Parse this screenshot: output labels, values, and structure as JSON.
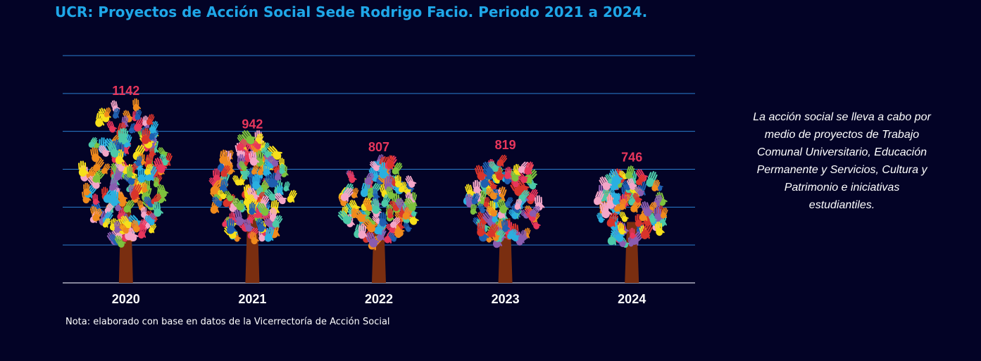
{
  "title": "UCR: Proyectos de Acción Social Sede Rodrigo Facio. Periodo 2021 a 2024.",
  "note": "Nota: elaborado con base en datos de la Vicerrectoría de Acción Social",
  "side_text": "La acción social se lleva a cabo por medio de proyectos de Trabajo Comunal Universitario, Educación Permanente y Servicios, Cultura y Patrimonio e iniciativas estudiantiles.",
  "colors": {
    "background": "#030326",
    "title": "#1fa7e8",
    "gridline": "#2a7fd0",
    "axis": "#b0b0c0",
    "value_label": "#e8365c",
    "trunk": "#7a2e10",
    "hands": [
      "#f7e01a",
      "#f08a1c",
      "#e8365c",
      "#2ab0e0",
      "#7dc23d",
      "#8a5cb0",
      "#f4a6c8",
      "#1f5fb0",
      "#d9342b",
      "#4cc9a8"
    ]
  },
  "chart_data": {
    "type": "bar",
    "mark": "tree-of-hands-icon",
    "categories": [
      "2020",
      "2021",
      "2022",
      "2023",
      "2024"
    ],
    "values": [
      1142,
      942,
      807,
      819,
      746
    ],
    "title": "UCR: Proyectos de Acción Social Sede Rodrigo Facio. Periodo 2021 a 2024.",
    "xlabel": "",
    "ylabel": "",
    "ylim": [
      0,
      1350
    ],
    "grid": true,
    "legend": "none"
  }
}
